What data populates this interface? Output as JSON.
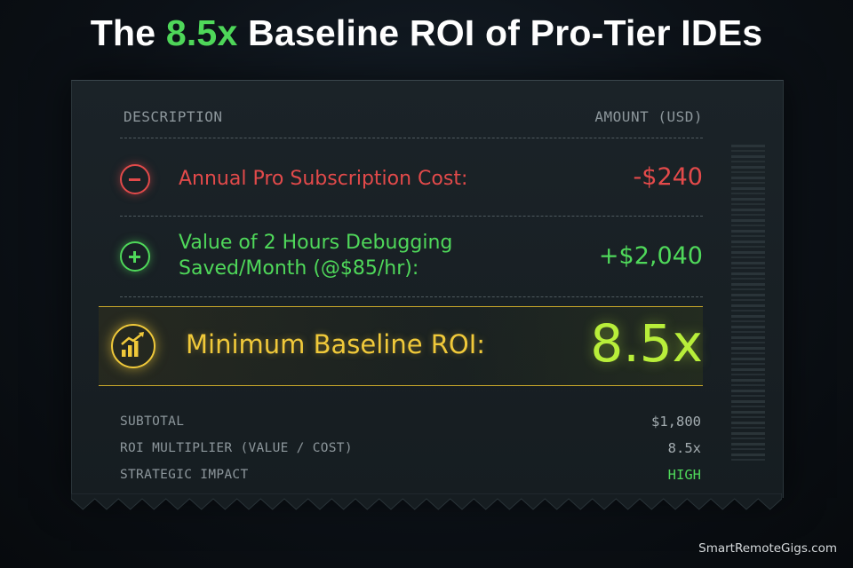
{
  "title": {
    "prefix": "The ",
    "accent": "8.5x",
    "suffix": " Baseline ROI of Pro-Tier IDEs"
  },
  "header": {
    "description": "DESCRIPTION",
    "amount": "AMOUNT (USD)"
  },
  "rows": [
    {
      "icon": "minus-circle-icon",
      "label": "Annual Pro Subscription Cost:",
      "amount": "-$240",
      "color": "#e24a4a"
    },
    {
      "icon": "plus-circle-icon",
      "label_line1": "Value of 2 Hours Debugging",
      "label_line2": "Saved/Month (@$85/hr):",
      "amount": "+$2,040",
      "color": "#4fd85a"
    }
  ],
  "roi": {
    "icon": "growth-chart-icon",
    "label": "Minimum Baseline ROI:",
    "value": "8.5x",
    "label_color": "#f0c93a",
    "value_color": "#b8ee3a"
  },
  "footer": [
    {
      "label": "SUBTOTAL",
      "value": "$1,800"
    },
    {
      "label": "ROI MULTIPLIER (VALUE / COST)",
      "value": "8.5x"
    },
    {
      "label": "STRATEGIC IMPACT",
      "value": "HIGH",
      "value_color": "#4fd85a"
    }
  ],
  "watermark": "SmartRemoteGigs.com"
}
